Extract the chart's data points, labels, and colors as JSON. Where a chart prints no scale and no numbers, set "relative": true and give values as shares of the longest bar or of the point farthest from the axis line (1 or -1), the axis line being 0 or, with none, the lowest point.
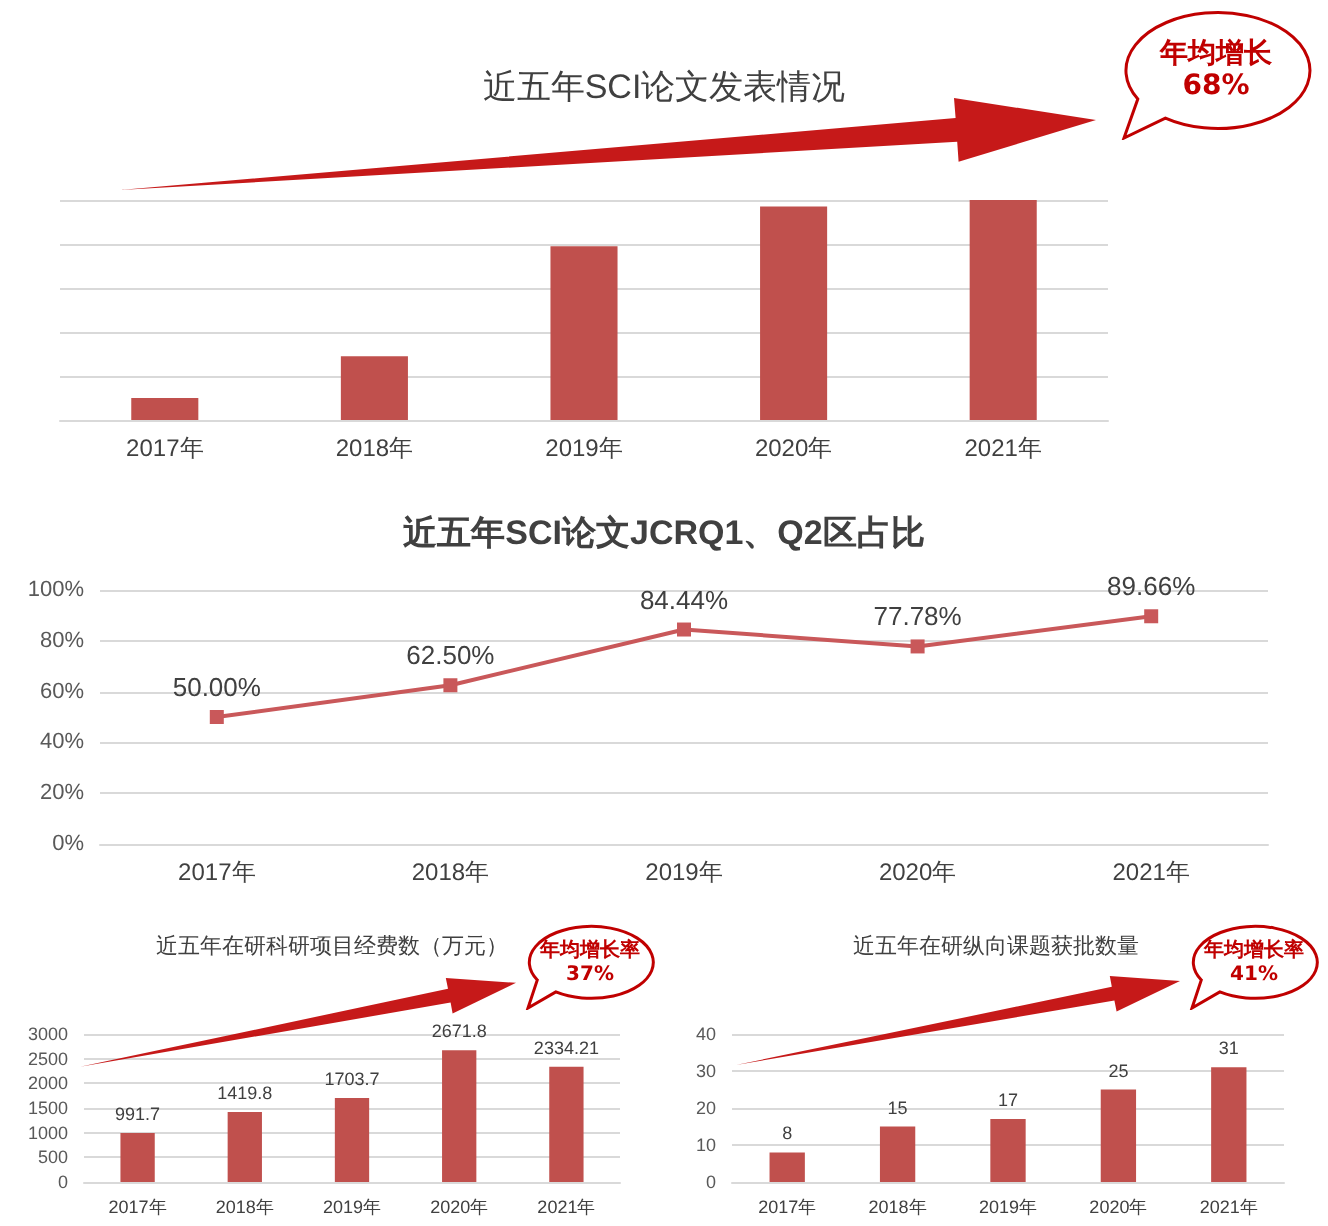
{
  "chart_data": [
    {
      "type": "bar",
      "title": "近五年SCI论文发表情况",
      "categories": [
        "2017年",
        "2018年",
        "2019年",
        "2020年",
        "2021年"
      ],
      "values": [
        0.1,
        0.29,
        0.79,
        0.97,
        1
      ],
      "color": "#c0504d",
      "relative": true,
      "grid": "y",
      "annotations": [
        "年均增长\n68%"
      ]
    },
    {
      "type": "line",
      "title": "近五年SCI论文JCRQ1、Q2区占比",
      "categories": [
        "2017年",
        "2018年",
        "2019年",
        "2020年",
        "2021年"
      ],
      "values": [
        50,
        62.5,
        84.44,
        77.78,
        89.66
      ],
      "value_labels": [
        "50.00%",
        "62.50%",
        "84.44%",
        "77.78%",
        "89.66%"
      ],
      "color": "#c9585a",
      "marker": "square",
      "ylim": [
        0,
        100
      ],
      "yticks": [
        {
          "value": 0,
          "label": "0%"
        },
        {
          "value": 20,
          "label": "20%"
        },
        {
          "value": 40,
          "label": "40%"
        },
        {
          "value": 60,
          "label": "60%"
        },
        {
          "value": 80,
          "label": "80%"
        },
        {
          "value": 100,
          "label": "100%"
        }
      ],
      "grid": "y"
    },
    {
      "type": "bar",
      "title": "近五年在研科研项目经费数（万元）",
      "categories": [
        "2017年",
        "2018年",
        "2019年",
        "2020年",
        "2021年"
      ],
      "values": [
        991.7,
        1419.8,
        1703.7,
        2671.8,
        2334.21
      ],
      "value_labels": [
        "991.7",
        "1419.8",
        "1703.7",
        "2671.8",
        "2334.21"
      ],
      "color": "#c0504d",
      "ylim": [
        0,
        3000
      ],
      "yticks": [
        0,
        500,
        1000,
        1500,
        2000,
        2500,
        3000
      ],
      "grid": "y",
      "annotations": [
        "年均增长率\n37%"
      ]
    },
    {
      "type": "bar",
      "title": "近五年在研纵向课题获批数量",
      "categories": [
        "2017年",
        "2018年",
        "2019年",
        "2020年",
        "2021年"
      ],
      "values": [
        8,
        15,
        17,
        25,
        31
      ],
      "data_labels": true,
      "color": "#c0504d",
      "ylim": [
        0,
        40
      ],
      "yticks": [
        0,
        10,
        20,
        30,
        40
      ],
      "grid": "y",
      "annotations": [
        "年均增长率\n41%"
      ]
    }
  ]
}
